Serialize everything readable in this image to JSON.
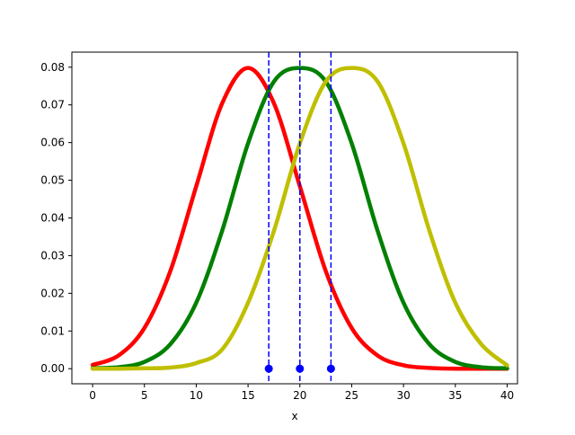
{
  "chart_data": {
    "type": "line",
    "title": "",
    "xlabel": "x",
    "ylabel": "",
    "xlim": [
      -2,
      41
    ],
    "ylim": [
      -0.004,
      0.084
    ],
    "x_ticks": [
      0,
      5,
      10,
      15,
      20,
      25,
      30,
      35,
      40
    ],
    "x_tick_labels": [
      "0",
      "5",
      "10",
      "15",
      "20",
      "25",
      "30",
      "35",
      "40"
    ],
    "y_ticks": [
      0.0,
      0.01,
      0.02,
      0.03,
      0.04,
      0.05,
      0.06,
      0.07,
      0.08
    ],
    "y_tick_labels": [
      "0.00",
      "0.01",
      "0.02",
      "0.03",
      "0.04",
      "0.05",
      "0.06",
      "0.07",
      "0.08"
    ],
    "grid": false,
    "x": [
      0,
      2.5,
      5,
      7.5,
      10,
      12.5,
      15,
      17.5,
      20,
      22.5,
      25,
      27.5,
      30,
      32.5,
      35,
      37.5,
      40
    ],
    "series": [
      {
        "color": "#ff0000",
        "values": [
          0.001,
          0.0035,
          0.0108,
          0.0259,
          0.0484,
          0.0704,
          0.0798,
          0.0704,
          0.0484,
          0.0259,
          0.0108,
          0.0035,
          0.0009,
          0.0002,
          0.0,
          0.0,
          0.0
        ]
      },
      {
        "color": "#008000",
        "values": [
          0.0001,
          0.0004,
          0.0018,
          0.0065,
          0.0175,
          0.0366,
          0.0598,
          0.0762,
          0.0798,
          0.0762,
          0.0598,
          0.0366,
          0.0175,
          0.0065,
          0.0018,
          0.0004,
          0.0001
        ]
      },
      {
        "color": "#bfbf00",
        "values": [
          0.0,
          0.0,
          0.0001,
          0.0003,
          0.0015,
          0.0051,
          0.0175,
          0.0366,
          0.0598,
          0.0762,
          0.0798,
          0.0762,
          0.0598,
          0.0366,
          0.0175,
          0.0065,
          0.0009
        ]
      }
    ],
    "vertical_lines": {
      "x": [
        17,
        20,
        23
      ],
      "color": "#0000ff",
      "style": "dashed"
    },
    "markers": {
      "x": [
        17,
        20,
        23
      ],
      "y": [
        0,
        0,
        0
      ],
      "color": "#0000ff"
    }
  }
}
